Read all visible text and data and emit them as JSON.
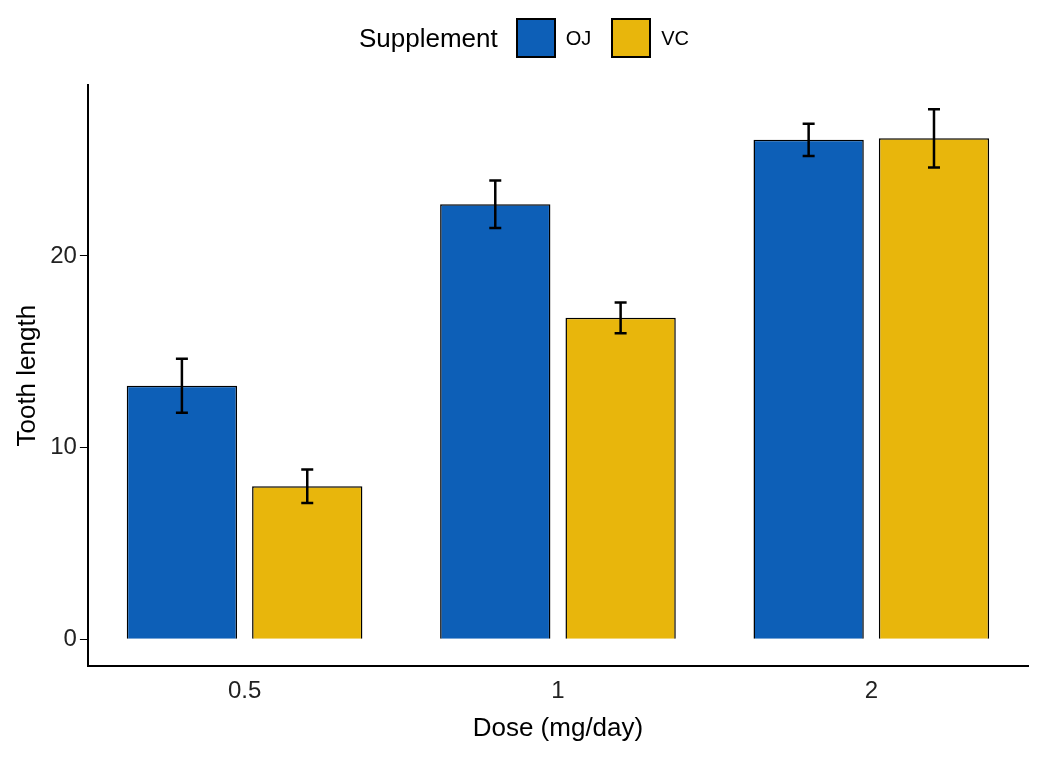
{
  "chart_data": {
    "type": "bar",
    "xlabel": "Dose (mg/day)",
    "ylabel": "Tooth length",
    "legend_title": "Supplement",
    "legend": "top",
    "categories": [
      "0.5",
      "1",
      "2"
    ],
    "series": [
      {
        "name": "OJ",
        "color": "#0d5fb7",
        "values": [
          13.23,
          22.7,
          26.06
        ],
        "errors": [
          1.41,
          1.24,
          0.84
        ]
      },
      {
        "name": "VC",
        "color": "#e8b60c",
        "values": [
          7.98,
          16.77,
          26.14
        ],
        "errors": [
          0.87,
          0.8,
          1.52
        ]
      }
    ],
    "ylim": [
      -1.4,
      28.9
    ],
    "yticks": [
      0,
      10,
      20
    ],
    "grid": false
  }
}
